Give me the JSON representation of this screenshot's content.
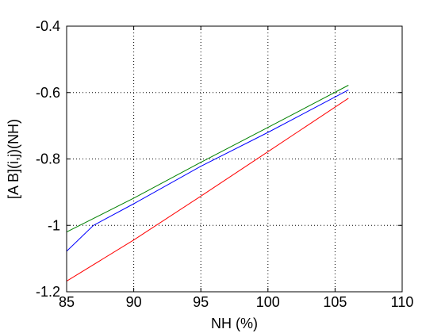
{
  "chart_data": {
    "type": "line",
    "title": "",
    "xlabel": "NH (%)",
    "ylabel": "[A B](i,j)(NH)",
    "xlim": [
      85,
      110
    ],
    "ylim": [
      -1.2,
      -0.4
    ],
    "xticks": [
      85,
      90,
      95,
      100,
      105,
      110
    ],
    "yticks": [
      -1.2,
      -1,
      -0.8,
      -0.6,
      -0.4
    ],
    "xtick_labels": [
      "85",
      "90",
      "95",
      "100",
      "105",
      "110"
    ],
    "ytick_labels": [
      "-1.2",
      "-1",
      "-0.8",
      "-0.6",
      "-0.4"
    ],
    "grid": true,
    "legend": "none",
    "series": [
      {
        "color": "#008000",
        "x": [
          85,
          90,
          95,
          100,
          106
        ],
        "y": [
          -1.02,
          -0.918,
          -0.81,
          -0.705,
          -0.578
        ]
      },
      {
        "color": "#0000ff",
        "x": [
          85,
          87,
          90,
          95,
          100,
          106
        ],
        "y": [
          -1.078,
          -1.0,
          -0.935,
          -0.822,
          -0.72,
          -0.592
        ]
      },
      {
        "color": "#ff0000",
        "x": [
          85,
          90,
          95,
          100,
          106
        ],
        "y": [
          -1.168,
          -1.044,
          -0.912,
          -0.778,
          -0.617
        ]
      }
    ]
  }
}
